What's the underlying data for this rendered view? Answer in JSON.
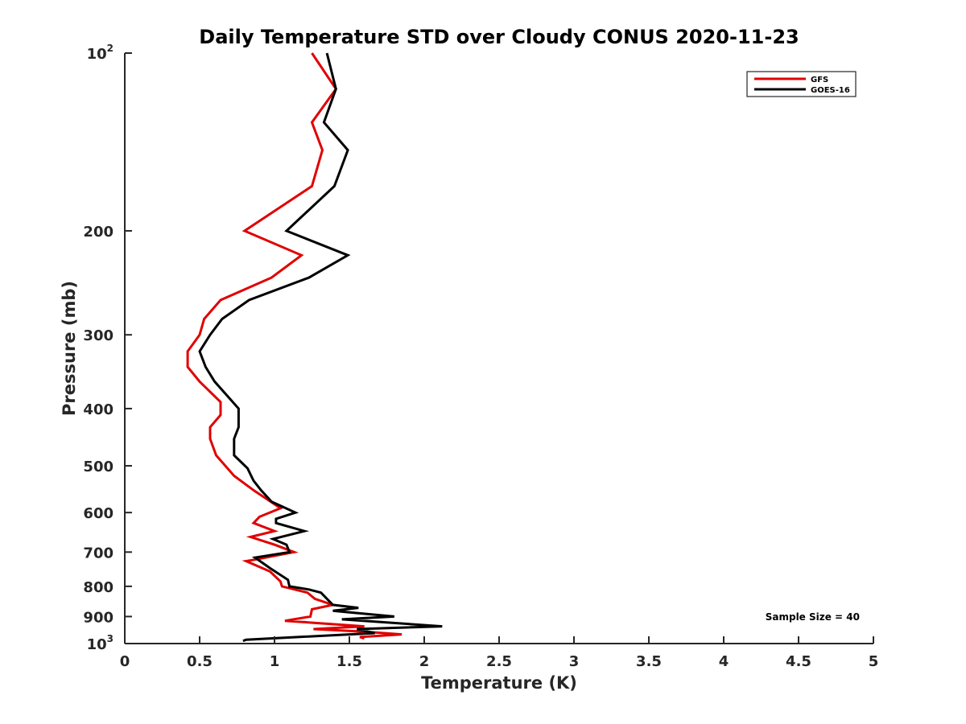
{
  "chart_data": {
    "type": "line",
    "title": "Daily Temperature STD over Cloudy CONUS 2020-11-23",
    "xlabel": "Temperature (K)",
    "ylabel": "Pressure (mb)",
    "xlim": [
      0,
      5
    ],
    "ylim": [
      100,
      1000
    ],
    "yscale": "log",
    "yreversed": true,
    "grid": false,
    "legend_position": "top-right",
    "x_ticks": [
      {
        "value": 0,
        "label": "0"
      },
      {
        "value": 0.5,
        "label": "0.5"
      },
      {
        "value": 1,
        "label": "1"
      },
      {
        "value": 1.5,
        "label": "1.5"
      },
      {
        "value": 2,
        "label": "2"
      },
      {
        "value": 2.5,
        "label": "2.5"
      },
      {
        "value": 3,
        "label": "3"
      },
      {
        "value": 3.5,
        "label": "3.5"
      },
      {
        "value": 4,
        "label": "4"
      },
      {
        "value": 4.5,
        "label": "4.5"
      },
      {
        "value": 5,
        "label": "5"
      }
    ],
    "y_ticks": [
      {
        "value": 100,
        "label": "10",
        "exponent": "2"
      },
      {
        "value": 200,
        "label": "200"
      },
      {
        "value": 300,
        "label": "300"
      },
      {
        "value": 400,
        "label": "400"
      },
      {
        "value": 500,
        "label": "500"
      },
      {
        "value": 600,
        "label": "600"
      },
      {
        "value": 700,
        "label": "700"
      },
      {
        "value": 800,
        "label": "800"
      },
      {
        "value": 900,
        "label": "900"
      },
      {
        "value": 1000,
        "label": "10",
        "exponent": "3"
      }
    ],
    "annotation": "Sample Size = 40",
    "series": [
      {
        "name": "GFS",
        "color": "#e00000",
        "points": [
          [
            1.25,
            100
          ],
          [
            1.41,
            115
          ],
          [
            1.25,
            131
          ],
          [
            1.32,
            146
          ],
          [
            1.25,
            168
          ],
          [
            0.8,
            200
          ],
          [
            1.18,
            220
          ],
          [
            0.98,
            240
          ],
          [
            0.64,
            262
          ],
          [
            0.53,
            282
          ],
          [
            0.5,
            300
          ],
          [
            0.42,
            320
          ],
          [
            0.42,
            340
          ],
          [
            0.5,
            360
          ],
          [
            0.64,
            390
          ],
          [
            0.64,
            410
          ],
          [
            0.57,
            430
          ],
          [
            0.57,
            450
          ],
          [
            0.61,
            480
          ],
          [
            0.73,
            520
          ],
          [
            0.86,
            550
          ],
          [
            1.04,
            590
          ],
          [
            0.9,
            610
          ],
          [
            0.86,
            625
          ],
          [
            1.0,
            645
          ],
          [
            0.84,
            660
          ],
          [
            1.0,
            680
          ],
          [
            1.13,
            700
          ],
          [
            0.88,
            720
          ],
          [
            0.81,
            725
          ],
          [
            0.97,
            755
          ],
          [
            1.04,
            785
          ],
          [
            1.05,
            800
          ],
          [
            1.22,
            820
          ],
          [
            1.27,
            840
          ],
          [
            1.39,
            860
          ],
          [
            1.25,
            875
          ],
          [
            1.24,
            900
          ],
          [
            1.07,
            915
          ],
          [
            1.6,
            935
          ],
          [
            1.26,
            945
          ],
          [
            1.6,
            955
          ],
          [
            1.85,
            965
          ],
          [
            1.57,
            975
          ],
          [
            1.6,
            980
          ]
        ]
      },
      {
        "name": "GOES-16",
        "color": "#000000",
        "points": [
          [
            1.35,
            100
          ],
          [
            1.41,
            115
          ],
          [
            1.33,
            131
          ],
          [
            1.49,
            146
          ],
          [
            1.4,
            168
          ],
          [
            1.08,
            200
          ],
          [
            1.49,
            220
          ],
          [
            1.23,
            240
          ],
          [
            0.83,
            262
          ],
          [
            0.65,
            282
          ],
          [
            0.57,
            300
          ],
          [
            0.5,
            320
          ],
          [
            0.54,
            340
          ],
          [
            0.6,
            360
          ],
          [
            0.76,
            400
          ],
          [
            0.76,
            430
          ],
          [
            0.73,
            450
          ],
          [
            0.73,
            480
          ],
          [
            0.82,
            505
          ],
          [
            0.86,
            530
          ],
          [
            0.91,
            550
          ],
          [
            0.98,
            575
          ],
          [
            1.14,
            600
          ],
          [
            1.01,
            615
          ],
          [
            1.01,
            625
          ],
          [
            1.2,
            645
          ],
          [
            0.99,
            665
          ],
          [
            1.08,
            680
          ],
          [
            1.1,
            700
          ],
          [
            0.87,
            715
          ],
          [
            0.97,
            745
          ],
          [
            1.09,
            780
          ],
          [
            1.1,
            800
          ],
          [
            1.23,
            810
          ],
          [
            1.31,
            820
          ],
          [
            1.39,
            860
          ],
          [
            1.56,
            870
          ],
          [
            1.39,
            880
          ],
          [
            1.8,
            900
          ],
          [
            1.45,
            910
          ],
          [
            2.12,
            935
          ],
          [
            1.55,
            945
          ],
          [
            1.67,
            960
          ],
          [
            0.81,
            985
          ],
          [
            0.79,
            990
          ]
        ]
      }
    ]
  }
}
